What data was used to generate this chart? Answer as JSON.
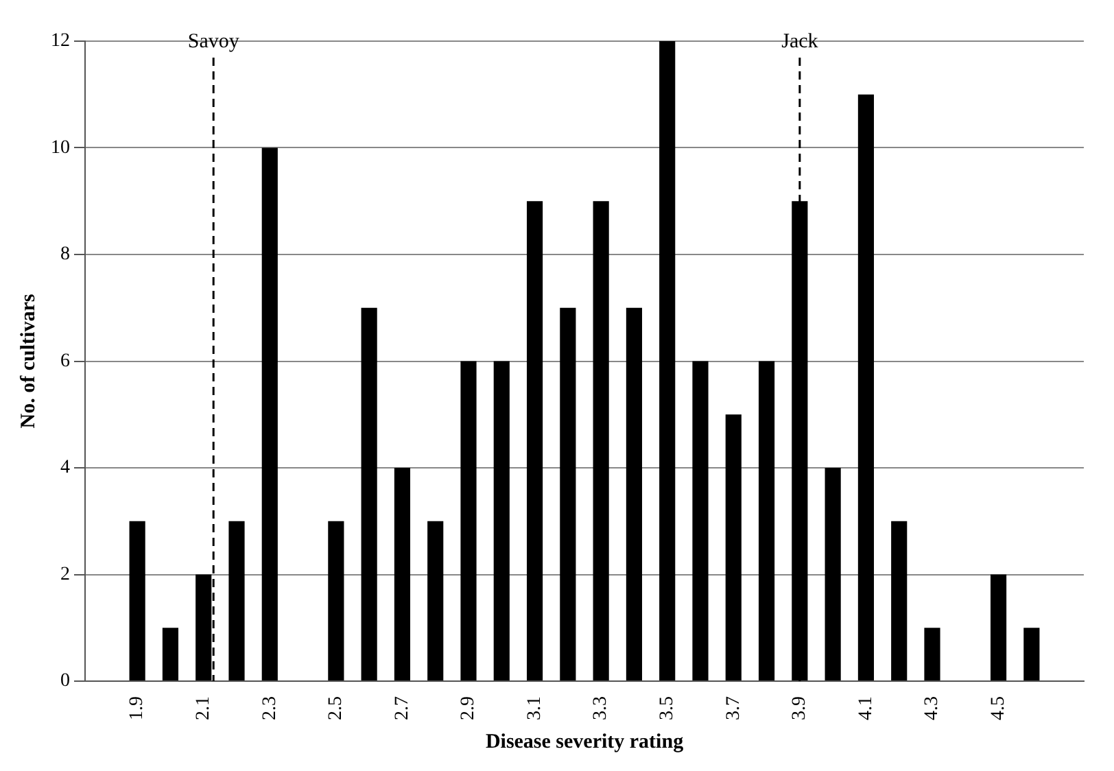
{
  "chart_data": {
    "type": "bar",
    "xlabel": "Disease severity rating",
    "ylabel": "No. of cultivars",
    "x": [
      1.9,
      2.0,
      2.1,
      2.2,
      2.3,
      2.4,
      2.5,
      2.6,
      2.7,
      2.8,
      2.9,
      3.0,
      3.1,
      3.2,
      3.3,
      3.4,
      3.5,
      3.6,
      3.7,
      3.8,
      3.9,
      4.0,
      4.1,
      4.2,
      4.3,
      4.4,
      4.5,
      4.6
    ],
    "values": [
      3,
      1,
      2,
      3,
      10,
      0,
      3,
      7,
      4,
      3,
      6,
      6,
      9,
      7,
      9,
      7,
      12,
      6,
      5,
      6,
      9,
      4,
      11,
      3,
      1,
      0,
      2,
      1
    ],
    "color": "#000000",
    "xlim": [
      1.85,
      4.65
    ],
    "xticks": [
      1.9,
      2.1,
      2.3,
      2.5,
      2.7,
      2.9,
      3.1,
      3.3,
      3.5,
      3.7,
      3.9,
      4.1,
      4.3,
      4.5
    ],
    "ylim": [
      0,
      12
    ],
    "yticks": [
      0,
      2,
      4,
      6,
      8,
      10,
      12
    ],
    "grid": "y",
    "legend": false,
    "ref_lines": [
      {
        "axis": "x",
        "value": 2.13,
        "label": "Savoy",
        "color": "#000000",
        "line_style": "dashed"
      },
      {
        "axis": "x",
        "value": 3.9,
        "label": "Jack",
        "color": "#000000",
        "line_style": "dashed"
      }
    ]
  }
}
